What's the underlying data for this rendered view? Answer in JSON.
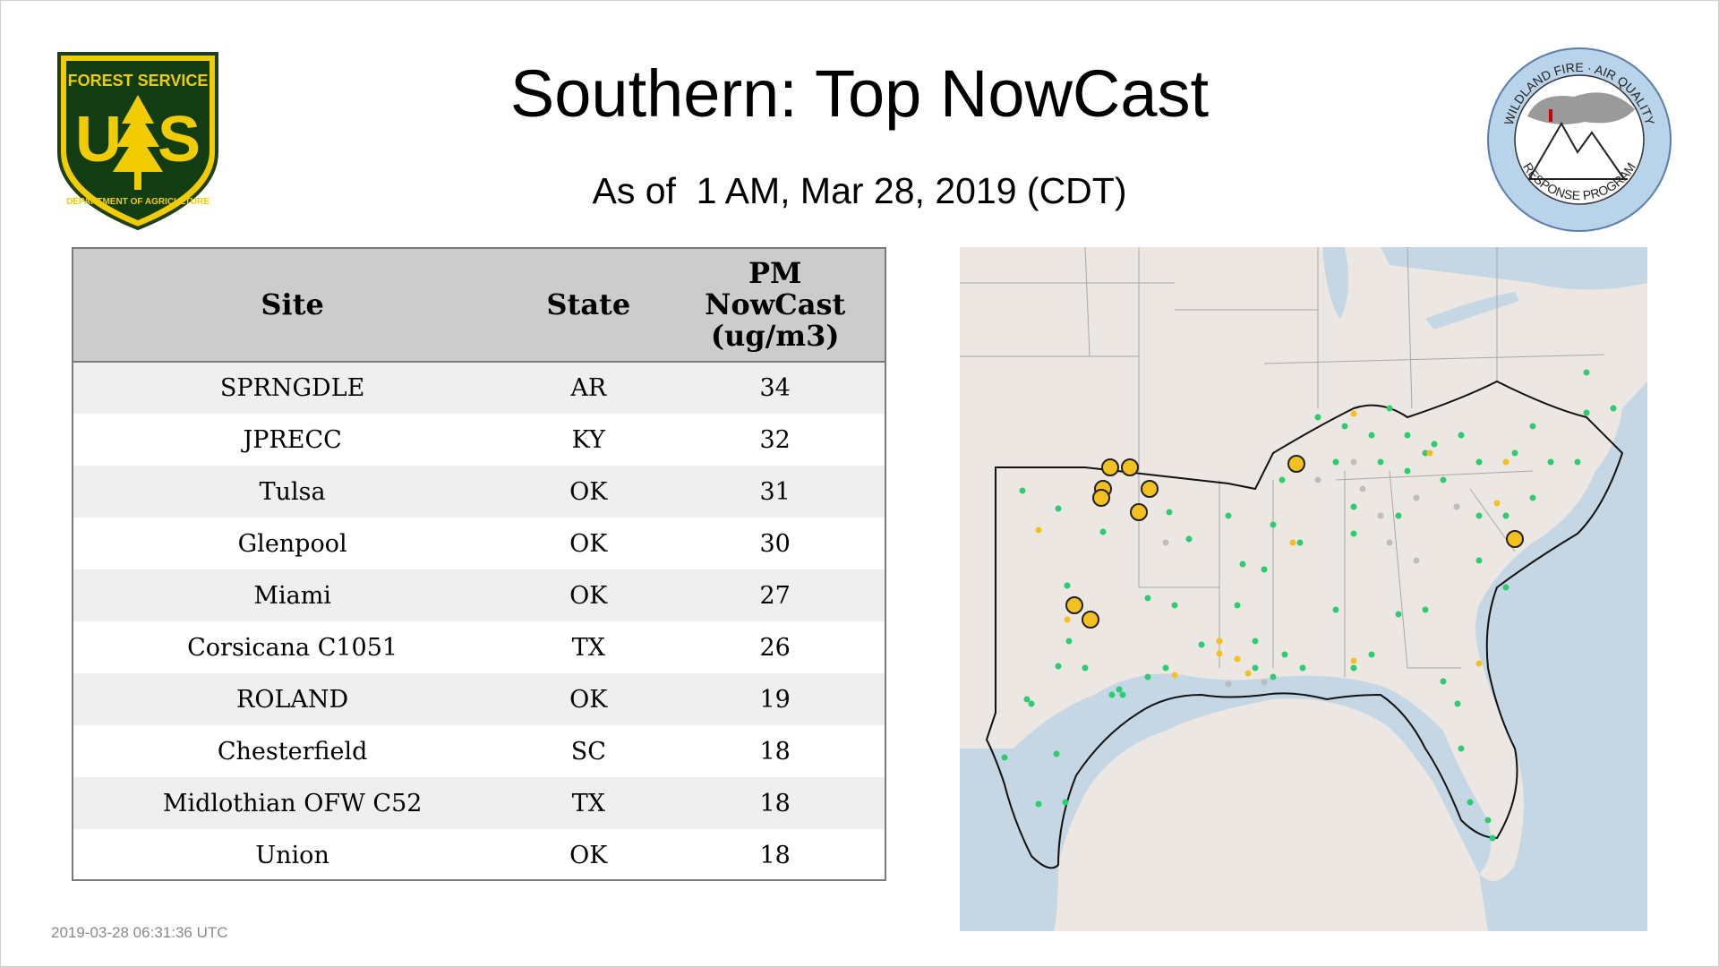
{
  "header": {
    "title": "Southern: Top NowCast",
    "subtitle": "As of  1 AM, Mar 28, 2019 (CDT)"
  },
  "logos": {
    "left": {
      "name": "USDA Forest Service shield",
      "text": [
        "FOREST SERVICE",
        "U",
        "S",
        "DEPARTMENT OF AGRICULTURE"
      ]
    },
    "right": {
      "name": "Wildland Fire Air Quality Response Program seal",
      "text": [
        "WILDLAND FIRE · AIR QUALITY",
        "RESPONSE PROGRAM"
      ]
    }
  },
  "table": {
    "headers": [
      "Site",
      "State",
      "PM NowCast (ug/m3)"
    ],
    "rows": [
      [
        "SPRNGDLE",
        "AR",
        "34"
      ],
      [
        "JPRECC",
        "KY",
        "32"
      ],
      [
        "Tulsa",
        "OK",
        "31"
      ],
      [
        "Glenpool",
        "OK",
        "30"
      ],
      [
        "Miami",
        "OK",
        "27"
      ],
      [
        "Corsicana C1051",
        "TX",
        "26"
      ],
      [
        "ROLAND",
        "OK",
        "19"
      ],
      [
        "Chesterfield",
        "SC",
        "18"
      ],
      [
        "Midlothian OFW C52",
        "TX",
        "18"
      ],
      [
        "Union",
        "OK",
        "18"
      ]
    ]
  },
  "map": {
    "colors": {
      "land": "#ece7e3",
      "water": "#c5d6e4",
      "borders": "#a8a8a8",
      "region_outline": "#111111",
      "good": "#2ecc71",
      "moderate": "#f4c020",
      "no_data": "#bdbdbd",
      "top_site_fill": "#f4c020",
      "top_site_stroke": "#222222"
    }
  },
  "footer": {
    "timestamp": "2019-03-28 06:31:36 UTC"
  }
}
